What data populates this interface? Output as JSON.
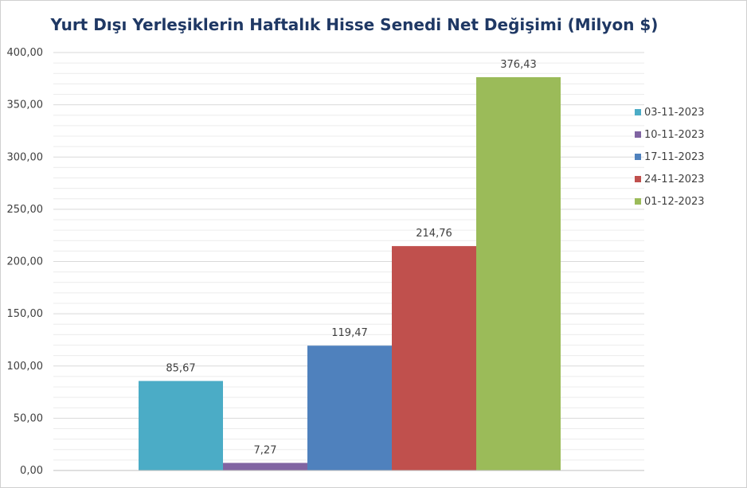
{
  "chart_data": {
    "type": "bar",
    "title": "Yurt Dışı Yerleşiklerin Haftalık Hisse Senedi Net Değişimi (Milyon $)",
    "xlabel": "",
    "ylabel": "",
    "ylim": [
      0,
      400
    ],
    "y_ticks": [
      "0,00",
      "50,00",
      "100,00",
      "150,00",
      "200,00",
      "250,00",
      "300,00",
      "350,00",
      "400,00"
    ],
    "grid": true,
    "legend_position": "right",
    "series": [
      {
        "name": "03-11-2023",
        "value": 85.67,
        "label": "85,67",
        "color": "#4bacc6"
      },
      {
        "name": "10-11-2023",
        "value": 7.27,
        "label": "7,27",
        "color": "#8064a2"
      },
      {
        "name": "17-11-2023",
        "value": 119.47,
        "label": "119,47",
        "color": "#4f81bd"
      },
      {
        "name": "24-11-2023",
        "value": 214.76,
        "label": "214,76",
        "color": "#c0504d"
      },
      {
        "name": "01-12-2023",
        "value": 376.43,
        "label": "376,43",
        "color": "#9bbb59"
      }
    ]
  }
}
